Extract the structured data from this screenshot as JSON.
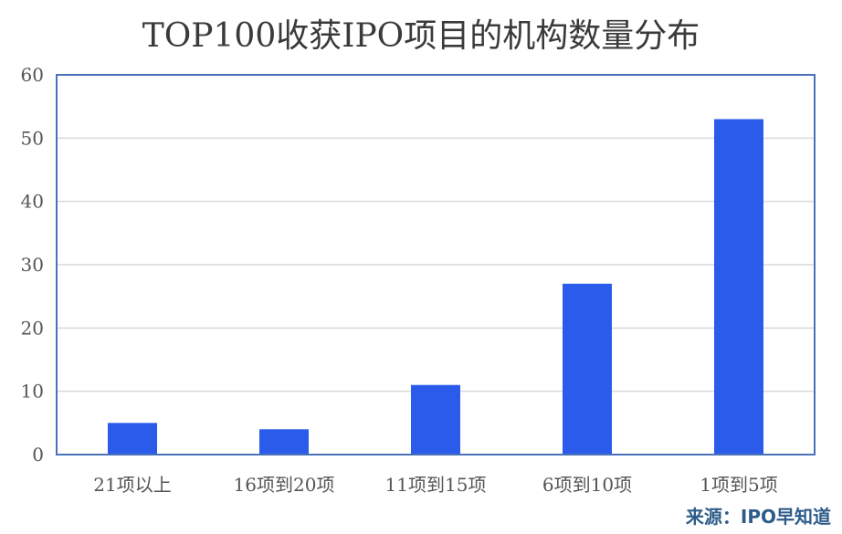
{
  "chart_data": {
    "type": "bar",
    "title": "TOP100收获IPO项目的机构数量分布",
    "categories": [
      "21项以上",
      "16项到20项",
      "11项到15项",
      "6项到10项",
      "1项到5项"
    ],
    "values": [
      5,
      4,
      11,
      27,
      53
    ],
    "xlabel": "",
    "ylabel": "",
    "ylim": [
      0,
      60
    ],
    "yticks": [
      0,
      10,
      20,
      30,
      40,
      50,
      60
    ],
    "grid": true,
    "legend": "none",
    "bar_color": "#2a5bea",
    "axis_color": "#4a72b8"
  },
  "source": "来源：IPO早知道"
}
